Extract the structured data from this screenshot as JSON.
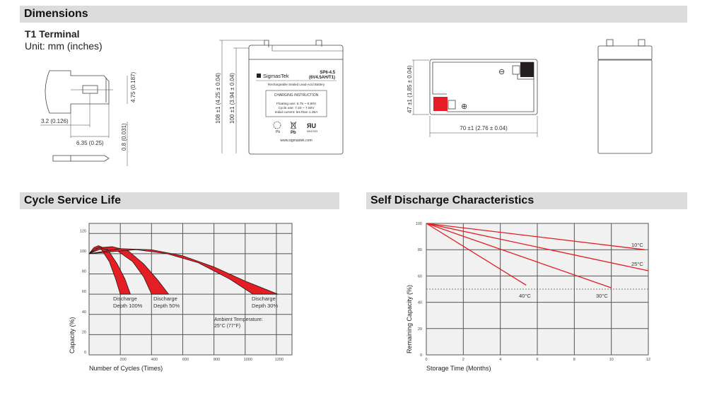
{
  "sections": {
    "dimensions": "Dimensions",
    "cycle_life": "Cycle Service Life",
    "self_discharge": "Self Discharge Characteristics"
  },
  "terminal": {
    "title": "T1 Terminal",
    "unit": "Unit: mm (inches)",
    "dim_height": "4.75 (0.187)",
    "dim_offset": "3.2 (0.126)",
    "dim_width": "6.35 (0.25)",
    "dim_thickness": "0.8 (0.031)"
  },
  "battery_front": {
    "dim_total_height": "108 ±1 (4.25 ± 0.04)",
    "dim_case_height": "100 ±1 (3.94 ± 0.04)",
    "brand": "SigmasTek",
    "model": "SP6-4.5",
    "model_spec": "(6V4.5AH/T1)",
    "subtitle": "Rechargeable Sealed Lead-Acid Battery",
    "charging_title": "CHARGING INSTRUCTION",
    "charging_lines": [
      "Floating use: 6.75 ~ 6.90V",
      "Cycle use: 7.20 ~ 7.50V",
      "Initial current: les than 1.35A"
    ],
    "recycle_label": "Pb",
    "bin_label": "Pb",
    "ul_code": "MH47929",
    "website": "www.sigmastek.com"
  },
  "battery_top": {
    "dim_depth": "47 ±1 (1.85 ± 0.04)",
    "dim_width": "70 ±1 (2.76 ± 0.04)",
    "negative_symbol": "⊖",
    "positive_symbol": "⊕",
    "colors": {
      "positive": "#e31e24",
      "negative": "#231f20"
    }
  },
  "chart_data": [
    {
      "type": "area",
      "title": "Cycle Service Life",
      "xlabel": "Number of Cycles (Times)",
      "ylabel": "Capacity (%)",
      "xlim": [
        0,
        1300
      ],
      "ylim": [
        0,
        130
      ],
      "xticks": [
        200,
        400,
        600,
        800,
        1000,
        1200
      ],
      "yticks": [
        0,
        20,
        40,
        60,
        80,
        100,
        120
      ],
      "grid": true,
      "fill_color": "#e31e24",
      "series": [
        {
          "name": "Discharge Depth 100%",
          "label_lines": [
            "Discharge",
            "Depth 100%"
          ],
          "outer": [
            [
              0,
              100
            ],
            [
              30,
              106
            ],
            [
              60,
              108
            ],
            [
              120,
              104
            ],
            [
              180,
              90
            ],
            [
              230,
              75
            ],
            [
              265,
              60
            ]
          ],
          "inner": [
            [
              0,
              100
            ],
            [
              40,
              105
            ],
            [
              80,
              104
            ],
            [
              130,
              92
            ],
            [
              170,
              75
            ],
            [
              200,
              60
            ]
          ]
        },
        {
          "name": "Discharge Depth 50%",
          "label_lines": [
            "Discharge",
            "Depth 50%"
          ],
          "outer": [
            [
              0,
              100
            ],
            [
              60,
              106
            ],
            [
              150,
              107
            ],
            [
              250,
              103
            ],
            [
              350,
              90
            ],
            [
              440,
              74
            ],
            [
              510,
              60
            ]
          ],
          "inner": [
            [
              0,
              100
            ],
            [
              80,
              105
            ],
            [
              180,
              103
            ],
            [
              280,
              92
            ],
            [
              350,
              77
            ],
            [
              400,
              60
            ]
          ]
        },
        {
          "name": "Discharge Depth 30%",
          "label_lines": [
            "Discharge",
            "Depth 30%"
          ],
          "outer": [
            [
              0,
              100
            ],
            [
              200,
              105
            ],
            [
              400,
              104
            ],
            [
              600,
              98
            ],
            [
              800,
              87
            ],
            [
              1000,
              73
            ],
            [
              1210,
              60
            ]
          ],
          "inner": [
            [
              0,
              100
            ],
            [
              300,
              104
            ],
            [
              500,
              100
            ],
            [
              700,
              91
            ],
            [
              900,
              75
            ],
            [
              1050,
              60
            ]
          ]
        }
      ],
      "annotation_lines": [
        "Ambient Temperature:",
        "25°C (77°F)"
      ]
    },
    {
      "type": "line",
      "title": "Self Discharge Characteristics",
      "xlabel": "Storage Time (Months)",
      "ylabel": "Remaining Capacity (%)",
      "xlim": [
        0,
        12
      ],
      "ylim": [
        0,
        100
      ],
      "xticks": [
        0,
        2,
        4,
        6,
        8,
        10,
        12
      ],
      "yticks": [
        0,
        20,
        40,
        60,
        80,
        100
      ],
      "grid": true,
      "line_color": "#e31e24",
      "reference_line": 50,
      "series": [
        {
          "name": "10°C",
          "points": [
            [
              0,
              100
            ],
            [
              11.8,
              80
            ]
          ]
        },
        {
          "name": "25°C",
          "points": [
            [
              0,
              100
            ],
            [
              12,
              64
            ]
          ]
        },
        {
          "name": "30°C",
          "points": [
            [
              0,
              100
            ],
            [
              10,
              51
            ]
          ]
        },
        {
          "name": "40°C",
          "points": [
            [
              0,
              100
            ],
            [
              5.4,
              53
            ]
          ]
        }
      ]
    }
  ]
}
